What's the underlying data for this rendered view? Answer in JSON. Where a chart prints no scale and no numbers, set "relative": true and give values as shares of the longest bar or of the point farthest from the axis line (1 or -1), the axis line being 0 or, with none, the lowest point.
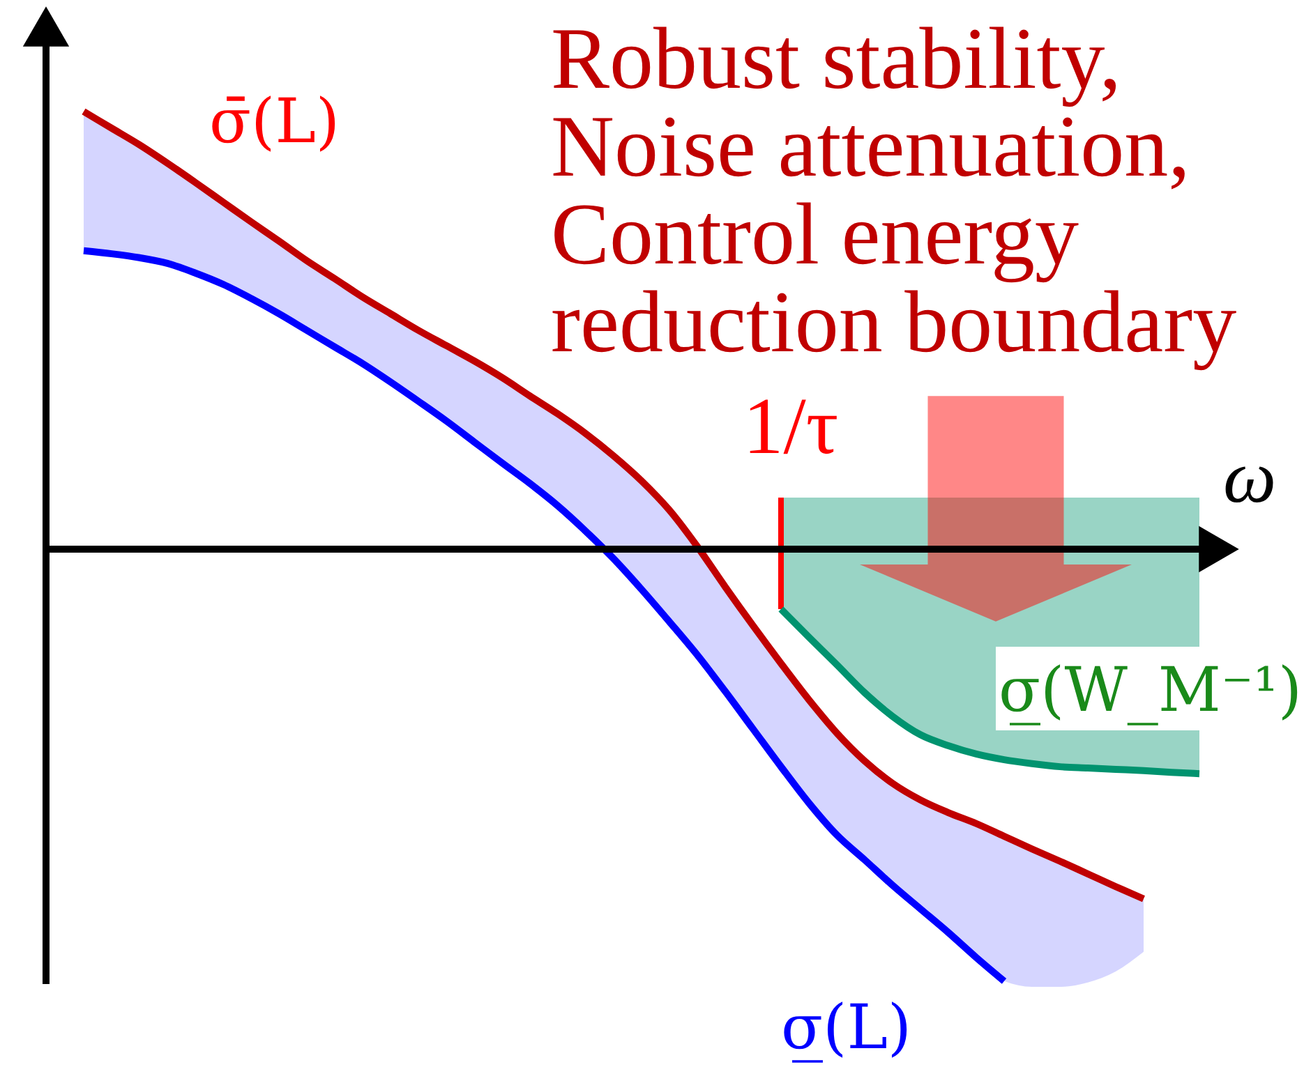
{
  "chart_data": {
    "type": "line",
    "relative": true,
    "xlabel": "ω",
    "categories": [
      null,
      null,
      null,
      null,
      null,
      null,
      null,
      null,
      null,
      null,
      null,
      null,
      null,
      null,
      null,
      null,
      null,
      null,
      null,
      null,
      null,
      null,
      null,
      null,
      null,
      null,
      null,
      null,
      null,
      null,
      null,
      null,
      null,
      null,
      null,
      null,
      null,
      null,
      null,
      null,
      null
    ],
    "series": [
      {
        "name": "σ̄(L)",
        "color": "#c00000",
        "values": [
          1.0,
          0.962,
          0.924,
          0.882,
          0.838,
          0.793,
          0.748,
          0.704,
          0.659,
          0.618,
          0.576,
          0.538,
          0.5,
          0.465,
          0.43,
          0.392,
          0.35,
          0.309,
          0.264,
          0.213,
          0.156,
          0.089,
          0.006,
          -0.086,
          -0.175,
          -0.261,
          -0.344,
          -0.42,
          -0.484,
          -0.535,
          -0.573,
          -0.602,
          -0.627,
          -0.656,
          -0.685,
          -0.713,
          -0.742,
          -0.771,
          -0.799,
          null,
          null
        ]
      },
      {
        "name": "σ̲(L)",
        "color": "#0000ff",
        "values": [
          0.682,
          0.675,
          0.666,
          0.653,
          0.631,
          0.605,
          0.573,
          0.538,
          0.5,
          0.462,
          0.424,
          0.382,
          0.338,
          0.293,
          0.245,
          0.197,
          0.15,
          0.099,
          0.041,
          -0.022,
          -0.092,
          -0.166,
          -0.242,
          -0.325,
          -0.411,
          -0.497,
          -0.58,
          -0.653,
          -0.71,
          -0.768,
          -0.822,
          -0.876,
          -0.933,
          -0.987,
          null,
          null,
          null,
          null,
          null,
          null,
          null
        ],
        "lower": [
          0.682,
          0.675,
          0.666,
          0.653,
          0.631,
          0.605,
          0.573,
          0.538,
          0.5,
          0.462,
          0.424,
          0.382,
          0.338,
          0.293,
          0.245,
          0.197,
          0.15,
          0.099,
          0.041,
          -0.022,
          -0.092,
          -0.166,
          -0.242,
          -0.325,
          -0.411,
          -0.497,
          -0.58,
          -0.653,
          -0.71,
          -0.768,
          -0.822,
          -0.876,
          -0.933,
          -0.987,
          -1.0,
          -1.0,
          -0.99,
          -0.965,
          -0.92,
          null,
          null
        ],
        "upper": [
          1.0,
          0.962,
          0.924,
          0.882,
          0.838,
          0.793,
          0.748,
          0.704,
          0.659,
          0.618,
          0.576,
          0.538,
          0.5,
          0.465,
          0.43,
          0.392,
          0.35,
          0.309,
          0.264,
          0.213,
          0.156,
          0.089,
          0.006,
          -0.086,
          -0.175,
          -0.261,
          -0.344,
          -0.42,
          -0.484,
          -0.535,
          -0.573,
          -0.602,
          -0.627,
          -0.656,
          -0.685,
          -0.713,
          -0.742,
          -0.771,
          -0.799,
          null,
          null
        ]
      },
      {
        "name": "σ̲(W_M⁻¹)",
        "color": "#00936f",
        "values": [
          null,
          null,
          null,
          null,
          null,
          null,
          null,
          null,
          null,
          null,
          null,
          null,
          null,
          null,
          null,
          null,
          null,
          null,
          null,
          null,
          null,
          null,
          null,
          null,
          null,
          -0.137,
          -0.201,
          -0.264,
          -0.328,
          -0.382,
          -0.424,
          -0.449,
          -0.468,
          -0.481,
          -0.49,
          -0.497,
          -0.5,
          -0.503,
          -0.506,
          -0.51,
          -0.513
        ],
        "lower": [
          null,
          null,
          null,
          null,
          null,
          null,
          null,
          null,
          null,
          null,
          null,
          null,
          null,
          null,
          null,
          null,
          null,
          null,
          null,
          null,
          null,
          null,
          null,
          null,
          null,
          -0.137,
          -0.201,
          -0.264,
          -0.328,
          -0.382,
          -0.424,
          -0.449,
          -0.468,
          -0.481,
          -0.49,
          -0.497,
          -0.5,
          -0.503,
          -0.506,
          -0.51,
          -0.513
        ],
        "upper": [
          null,
          null,
          null,
          null,
          null,
          null,
          null,
          null,
          null,
          null,
          null,
          null,
          null,
          null,
          null,
          null,
          null,
          null,
          null,
          null,
          null,
          null,
          null,
          null,
          null,
          0.118,
          0.118,
          0.118,
          0.118,
          0.118,
          0.118,
          0.118,
          0.118,
          0.118,
          0.118,
          0.118,
          0.118,
          0.118,
          0.118,
          0.118,
          0.118
        ]
      }
    ],
    "annotations": [
      "Robust stability,\nNoise attenuation,\nControl energy\nreduction boundary",
      "1/τ"
    ]
  }
}
